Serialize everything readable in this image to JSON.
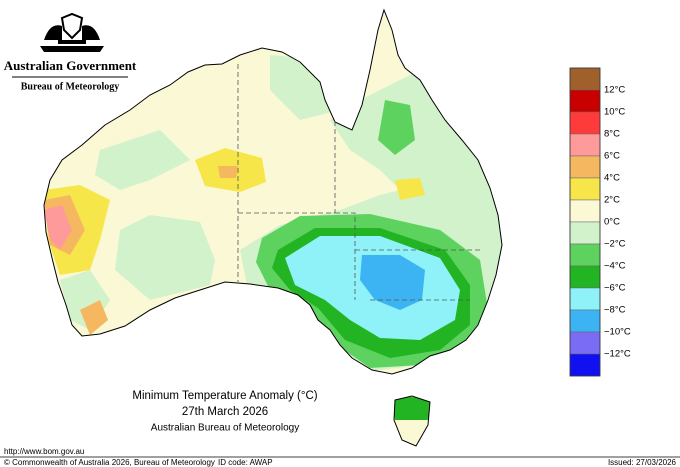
{
  "header": {
    "government": "Australian Government",
    "agency": "Bureau of Meteorology"
  },
  "map": {
    "title": "Minimum Temperature Anomaly (°C)",
    "date": "27th March 2026",
    "source": "Australian Bureau of Meteorology"
  },
  "legend": {
    "labels": [
      "12°C",
      "10°C",
      "8°C",
      "6°C",
      "4°C",
      "2°C",
      "0°C",
      "−2°C",
      "−4°C",
      "−6°C",
      "−8°C",
      "−10°C",
      "−12°C"
    ],
    "colors": [
      "#a0602c",
      "#c80000",
      "#ff3a3a",
      "#ff9a9a",
      "#f5b860",
      "#f6e64a",
      "#fbf8d6",
      "#d2f2cc",
      "#5ed25e",
      "#22b422",
      "#8ef2f8",
      "#3cb4f4",
      "#7a6cf4",
      "#1010f0"
    ]
  },
  "footer": {
    "url": "http://www.bom.gov.au",
    "copyright": "© Commonwealth of Australia 2026, Bureau of Meteorology",
    "id_code": "ID code: AWAP",
    "issued": "Issued: 27/03/2026"
  }
}
